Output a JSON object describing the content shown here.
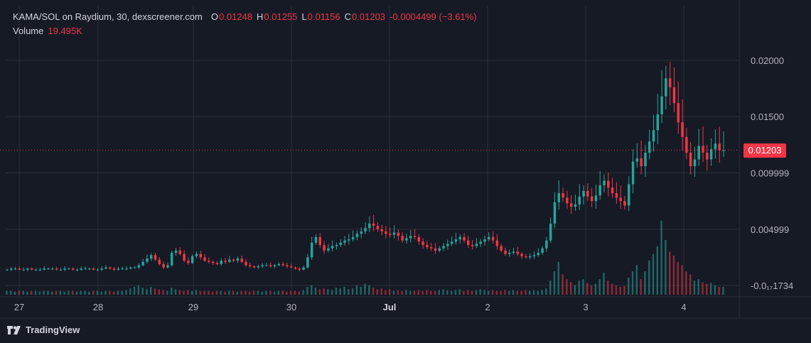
{
  "header": {
    "symbol_line": "KAMA/SOL on Raydium, 30, dexscreener.com",
    "o_label": "O",
    "o_value": "0.01248",
    "h_label": "H",
    "h_value": "0.01255",
    "l_label": "L",
    "l_value": "0.01156",
    "c_label": "C",
    "c_value": "0.01203",
    "change": "-0.0004499 (−3.61%)",
    "volume_label": "Volume",
    "volume_value": "19.495K"
  },
  "last_price_tag": "0.01203",
  "footer": {
    "brand": "TradingView"
  },
  "colors": {
    "background": "#161a25",
    "grid": "#2a2e39",
    "up": "#26a69a",
    "down": "#f23645",
    "text": "#b2b5be"
  },
  "chart_data": {
    "type": "candlestick",
    "title": "KAMA/SOL on Raydium, 30, dexscreener.com",
    "y_tick_labels": [
      "0.02000",
      "0.01500",
      "0.009999",
      "0.004999",
      "-0.0₁₇1734"
    ],
    "y_tick_values": [
      0.02,
      0.015,
      0.009999,
      0.004999,
      -1.734e-08
    ],
    "x_tick_labels": [
      "27",
      "28",
      "29",
      "30",
      "Jul",
      "2",
      "3",
      "4"
    ],
    "x_tick_bold": [
      false,
      false,
      false,
      false,
      true,
      false,
      false,
      false
    ],
    "ylim": [
      -0.0008,
      0.0232
    ],
    "grid": true,
    "last_price": 0.01203,
    "series": [
      {
        "x_start_label": "27",
        "x_end_label": "4",
        "close": [
          0.0014,
          0.0015,
          0.0015,
          0.0014,
          0.0014,
          0.0015,
          0.0014,
          0.0014,
          0.0014,
          0.0015,
          0.0015,
          0.0015,
          0.0014,
          0.0014,
          0.0015,
          0.0015,
          0.0014,
          0.0014,
          0.0015,
          0.0015,
          0.0015,
          0.0014,
          0.0014,
          0.0015,
          0.0016,
          0.0015,
          0.0014,
          0.0015,
          0.0015,
          0.0015,
          0.0016,
          0.0016,
          0.0018,
          0.0021,
          0.0024,
          0.0027,
          0.0023,
          0.0019,
          0.0016,
          0.0018,
          0.0029,
          0.0031,
          0.0028,
          0.0022,
          0.002,
          0.0026,
          0.0028,
          0.0025,
          0.0022,
          0.0021,
          0.002,
          0.0019,
          0.0022,
          0.0021,
          0.0023,
          0.0022,
          0.0024,
          0.0021,
          0.0018,
          0.0017,
          0.0016,
          0.0017,
          0.0018,
          0.0018,
          0.0017,
          0.0018,
          0.0019,
          0.0018,
          0.0017,
          0.0016,
          0.0015,
          0.0014,
          0.0016,
          0.0025,
          0.0038,
          0.0043,
          0.0036,
          0.0031,
          0.0033,
          0.0035,
          0.0036,
          0.0038,
          0.004,
          0.0041,
          0.0043,
          0.0046,
          0.0048,
          0.0051,
          0.0055,
          0.0053,
          0.005,
          0.0048,
          0.0046,
          0.0045,
          0.0047,
          0.0044,
          0.004,
          0.0042,
          0.0044,
          0.0043,
          0.0039,
          0.0036,
          0.0034,
          0.0033,
          0.0031,
          0.0033,
          0.0035,
          0.0037,
          0.0039,
          0.0041,
          0.0043,
          0.004,
          0.0036,
          0.0035,
          0.0037,
          0.0039,
          0.0041,
          0.0043,
          0.004,
          0.0035,
          0.0031,
          0.0028,
          0.0029,
          0.003,
          0.0028,
          0.0026,
          0.0025,
          0.0026,
          0.0027,
          0.0029,
          0.0033,
          0.004,
          0.0055,
          0.0074,
          0.0082,
          0.0078,
          0.0073,
          0.007,
          0.0072,
          0.0079,
          0.0084,
          0.0079,
          0.0075,
          0.008,
          0.0089,
          0.0093,
          0.0087,
          0.0082,
          0.0078,
          0.0075,
          0.0071,
          0.009,
          0.011,
          0.0113,
          0.0106,
          0.0118,
          0.0128,
          0.0138,
          0.0152,
          0.0168,
          0.0184,
          0.0176,
          0.0162,
          0.0145,
          0.0132,
          0.0118,
          0.0106,
          0.0112,
          0.0124,
          0.0118,
          0.0112,
          0.0121,
          0.0126,
          0.012,
          0.012
        ],
        "volume_relative": [
          0.05,
          0.05,
          0.04,
          0.05,
          0.05,
          0.04,
          0.05,
          0.05,
          0.04,
          0.05,
          0.05,
          0.04,
          0.05,
          0.05,
          0.04,
          0.05,
          0.05,
          0.04,
          0.05,
          0.05,
          0.04,
          0.05,
          0.05,
          0.04,
          0.05,
          0.05,
          0.04,
          0.05,
          0.05,
          0.06,
          0.08,
          0.1,
          0.12,
          0.09,
          0.07,
          0.1,
          0.08,
          0.07,
          0.06,
          0.05,
          0.09,
          0.07,
          0.06,
          0.05,
          0.06,
          0.05,
          0.06,
          0.05,
          0.05,
          0.05,
          0.04,
          0.05,
          0.05,
          0.04,
          0.05,
          0.05,
          0.04,
          0.05,
          0.05,
          0.04,
          0.05,
          0.05,
          0.04,
          0.05,
          0.05,
          0.04,
          0.05,
          0.05,
          0.04,
          0.05,
          0.05,
          0.04,
          0.06,
          0.1,
          0.12,
          0.09,
          0.07,
          0.08,
          0.07,
          0.06,
          0.09,
          0.08,
          0.1,
          0.07,
          0.08,
          0.12,
          0.1,
          0.14,
          0.12,
          0.09,
          0.07,
          0.08,
          0.06,
          0.07,
          0.05,
          0.06,
          0.05,
          0.06,
          0.05,
          0.05,
          0.06,
          0.05,
          0.06,
          0.05,
          0.05,
          0.06,
          0.07,
          0.06,
          0.05,
          0.06,
          0.07,
          0.05,
          0.06,
          0.05,
          0.06,
          0.07,
          0.06,
          0.05,
          0.06,
          0.05,
          0.05,
          0.06,
          0.05,
          0.06,
          0.05,
          0.05,
          0.06,
          0.05,
          0.06,
          0.05,
          0.06,
          0.08,
          0.18,
          0.3,
          0.42,
          0.26,
          0.2,
          0.16,
          0.12,
          0.18,
          0.2,
          0.15,
          0.12,
          0.14,
          0.2,
          0.28,
          0.18,
          0.14,
          0.12,
          0.1,
          0.11,
          0.22,
          0.3,
          0.38,
          0.2,
          0.3,
          0.44,
          0.52,
          0.62,
          0.95,
          0.7,
          0.55,
          0.5,
          0.42,
          0.38,
          0.3,
          0.26,
          0.18,
          0.2,
          0.16,
          0.14,
          0.15,
          0.12,
          0.1,
          0.1
        ]
      }
    ]
  }
}
